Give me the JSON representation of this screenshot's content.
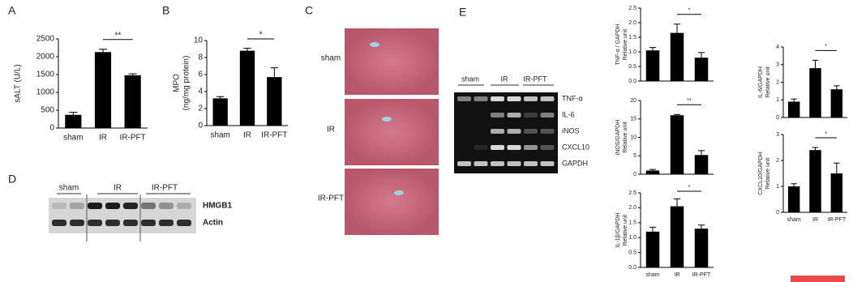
{
  "panel_letters": [
    "A",
    "B",
    "C",
    "D",
    "E"
  ],
  "chart_data": [
    {
      "type": "bar",
      "ylabel": [
        "sALT (U/L)"
      ],
      "categories": [
        "sham",
        "IR",
        "IR-PFT"
      ],
      "values": [
        370,
        2130,
        1480
      ],
      "errors": [
        70,
        80,
        40
      ],
      "ylim": [
        0,
        2500
      ],
      "yticks": [
        0,
        500,
        1000,
        1500,
        2000,
        2500
      ],
      "significance": "**",
      "color": "#000000"
    },
    {
      "type": "bar",
      "ylabel": [
        "MPO",
        "(ng/mg protein)"
      ],
      "categories": [
        "sham",
        "IR",
        "IR-PFT"
      ],
      "values": [
        3.2,
        8.8,
        5.7
      ],
      "errors": [
        0.2,
        0.3,
        1.1
      ],
      "ylim": [
        0,
        10
      ],
      "yticks": [
        0,
        2,
        4,
        6,
        8,
        10
      ],
      "significance": "*",
      "color": "#000000"
    },
    {
      "type": "bar",
      "ylabel": [
        "TNF-α / GAPDH",
        "Relative unit"
      ],
      "values": [
        1.05,
        1.65,
        0.8
      ],
      "errors": [
        0.1,
        0.3,
        0.18
      ],
      "ylim": [
        0,
        2.5
      ],
      "yticks": [
        {
          "value": 0,
          "label": "0.0"
        },
        0.5,
        {
          "value": 1,
          "label": "1.0"
        },
        1.5,
        {
          "value": 2,
          "label": "2.0"
        },
        2.5
      ],
      "significance": "*",
      "color": "#000000"
    },
    {
      "type": "bar",
      "ylabel": [
        "iNOS/GAPDH",
        "Relative unit"
      ],
      "values": [
        1.0,
        16,
        5.2
      ],
      "errors": [
        0.3,
        0.2,
        1.2
      ],
      "ylim": [
        0,
        20
      ],
      "yticks": [
        0,
        5,
        10,
        15,
        20
      ],
      "significance": "**",
      "color": "#000000"
    },
    {
      "type": "bar",
      "ylabel": [
        "IL-1β/GAPDH",
        "Relative unit"
      ],
      "categories": [
        "sham",
        "IR",
        "IR-PFT"
      ],
      "values": [
        1.2,
        2.05,
        1.3
      ],
      "errors": [
        0.15,
        0.25,
        0.12
      ],
      "ylim": [
        0,
        2.5
      ],
      "yticks": [
        {
          "value": 0,
          "label": "0.0"
        },
        0.5,
        {
          "value": 1,
          "label": "1.0"
        },
        1.5,
        {
          "value": 2,
          "label": "2.0"
        },
        2.5
      ],
      "significance": "*",
      "color": "#000000"
    },
    {
      "type": "bar",
      "ylabel": [
        "IL-6/GAPDH",
        "Relative unit"
      ],
      "values": [
        0.9,
        2.8,
        1.6
      ],
      "errors": [
        0.15,
        0.45,
        0.2
      ],
      "ylim": [
        0,
        4
      ],
      "yticks": [
        0,
        1,
        2,
        3,
        4
      ],
      "significance": "*",
      "color": "#000000"
    },
    {
      "type": "bar",
      "ylabel": [
        "CXCL10/GAPDH",
        "Relative unit"
      ],
      "categories": [
        "sham",
        "IR",
        "IR-PFT"
      ],
      "values": [
        1.0,
        2.4,
        1.5
      ],
      "errors": [
        0.1,
        0.1,
        0.4
      ],
      "ylim": [
        0,
        3
      ],
      "yticks": [
        0,
        1,
        2,
        3
      ],
      "significance": "*",
      "color": "#000000"
    }
  ],
  "histology": {
    "labels": [
      "sham",
      "IR",
      "IR-PFT"
    ]
  },
  "western_blot": {
    "groups": [
      "sham",
      "IR",
      "IR-PFT"
    ],
    "bands": [
      "HMGB1",
      "Actin"
    ]
  },
  "rt_pcr": {
    "groups": [
      "sham",
      "IR",
      "IR-PFT"
    ],
    "genes": [
      "TNF-α",
      "IL-6",
      "iNOS",
      "CXCL10",
      "GAPDH"
    ]
  }
}
